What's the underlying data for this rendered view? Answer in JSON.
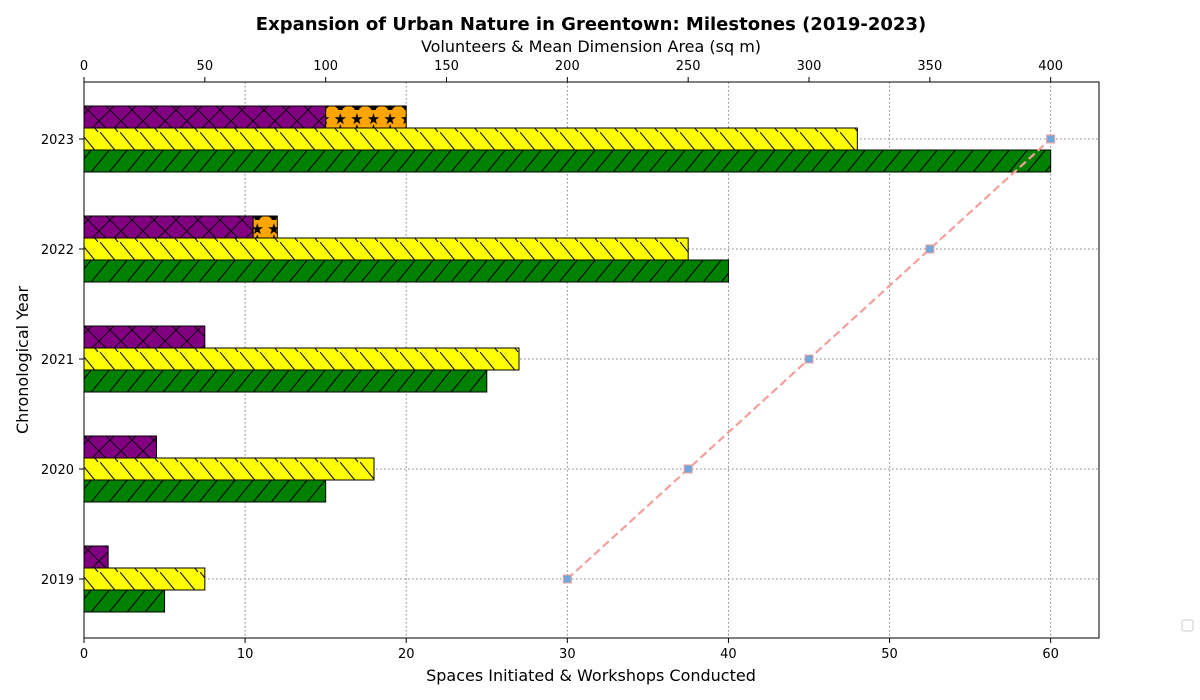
{
  "chart_data": {
    "type": "bar",
    "orientation": "horizontal",
    "title": "Expansion of Urban Nature in Greentown: Milestones (2019-2023)",
    "xlabel_bottom": "Spaces Initiated & Workshops Conducted",
    "xlabel_top": "Volunteers & Mean Dimension Area (sq m)",
    "ylabel": "Chronological Year",
    "categories": [
      "2019",
      "2020",
      "2021",
      "2022",
      "2023"
    ],
    "xlim_bottom": [
      0,
      63
    ],
    "xlim_top": [
      0,
      420
    ],
    "xticks_bottom": [
      "0",
      "10",
      "20",
      "30",
      "40",
      "50",
      "60"
    ],
    "xticks_top": [
      "0",
      "50",
      "100",
      "150",
      "200",
      "250",
      "300",
      "350",
      "400"
    ],
    "grid": true,
    "series": [
      {
        "axis": "bottom",
        "color": "#008000",
        "hatch": "forward-slash",
        "values": [
          5,
          15,
          25,
          40,
          60
        ]
      },
      {
        "axis": "bottom",
        "color": "#ffff00",
        "hatch": "back-slash",
        "values": [
          7.5,
          18,
          27,
          37.5,
          48
        ]
      },
      {
        "axis": "bottom",
        "color": "#800080",
        "hatch": "cross",
        "values": [
          1.5,
          4.5,
          7.5,
          10.5,
          15
        ],
        "stacked_group": "top-bar"
      },
      {
        "axis": "bottom",
        "color": "#ffa500",
        "hatch": "star",
        "values": [
          0,
          0,
          0,
          1.5,
          5
        ],
        "stacked_on": "top-bar"
      },
      {
        "axis": "top",
        "type": "line",
        "color": "#f4a09c",
        "marker_color": "#6fa8dc",
        "style": "dashed",
        "values": [
          200,
          250,
          300,
          350,
          400
        ]
      }
    ]
  }
}
